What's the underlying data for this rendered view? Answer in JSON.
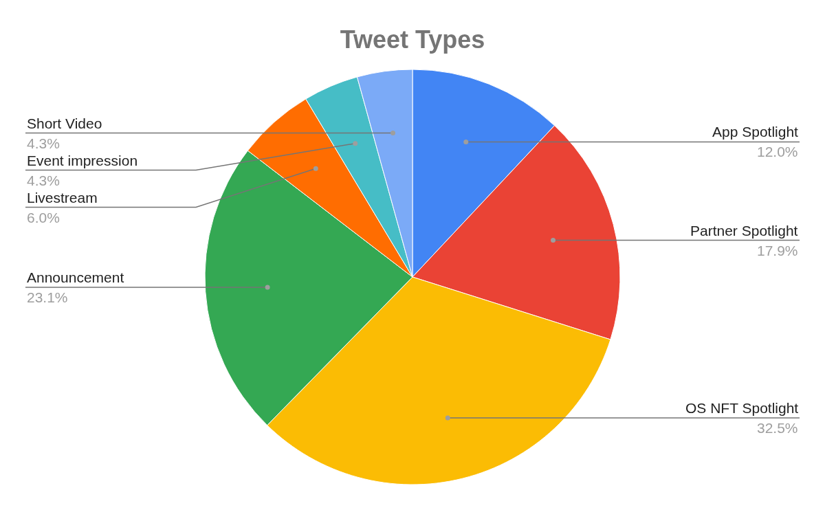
{
  "chart_data": {
    "type": "pie",
    "title": "Tweet Types",
    "categories": [
      "App Spotlight",
      "Partner Spotlight",
      "OS NFT Spotlight",
      "Announcement",
      "Livestream",
      "Event impression",
      "Short Video"
    ],
    "values": [
      12.0,
      17.9,
      32.5,
      23.1,
      6.0,
      4.3,
      4.3
    ],
    "value_labels": [
      "12.0%",
      "17.9%",
      "32.5%",
      "23.1%",
      "6.0%",
      "4.3%",
      "4.3%"
    ],
    "colors": [
      "#4285f4",
      "#ea4335",
      "#fbbc04",
      "#34a853",
      "#ff6d01",
      "#46bdc6",
      "#7baaf7"
    ],
    "legend": false
  }
}
